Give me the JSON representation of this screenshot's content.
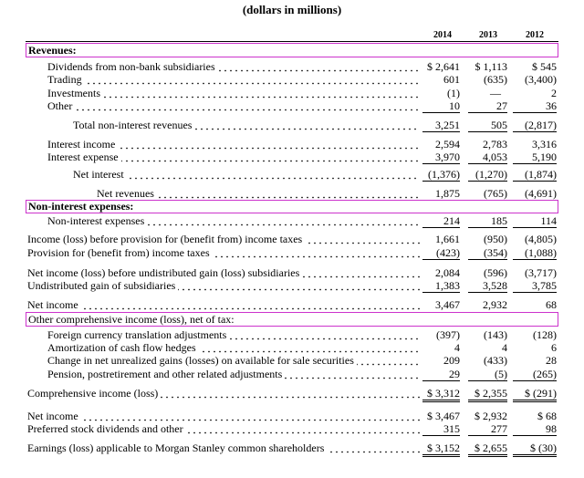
{
  "caption": "(dollars in millions)",
  "columns": [
    "2014",
    "2013",
    "2012"
  ],
  "sections": {
    "revenues": "Revenues:",
    "non_interest_expenses": "Non-interest expenses:",
    "oci": "Other comprehensive income (loss), net of tax:"
  },
  "rows": [
    {
      "label": "Dividends from non-bank subsidiaries",
      "values": [
        "$ 2,641",
        "$ 1,113",
        "$ 545"
      ]
    },
    {
      "label": "Trading",
      "values": [
        "601",
        "(635)",
        "(3,400)"
      ]
    },
    {
      "label": "Investments",
      "values": [
        "(1)",
        "—",
        "2"
      ]
    },
    {
      "label": "Other",
      "values": [
        "10",
        "27",
        "36"
      ]
    },
    {
      "label": "Total non-interest revenues",
      "values": [
        "3,251",
        "505",
        "(2,817)"
      ]
    },
    {
      "label": "Interest income",
      "values": [
        "2,594",
        "2,783",
        "3,316"
      ]
    },
    {
      "label": "Interest expense",
      "values": [
        "3,970",
        "4,053",
        "5,190"
      ]
    },
    {
      "label": "Net interest",
      "values": [
        "(1,376)",
        "(1,270)",
        "(1,874)"
      ]
    },
    {
      "label": "Net revenues",
      "values": [
        "1,875",
        "(765)",
        "(4,691)"
      ]
    },
    {
      "label": "Non-interest expenses",
      "values": [
        "214",
        "185",
        "114"
      ]
    },
    {
      "label": "Income (loss) before provision for (benefit from) income taxes",
      "values": [
        "1,661",
        "(950)",
        "(4,805)"
      ]
    },
    {
      "label": "Provision for (benefit from) income taxes",
      "values": [
        "(423)",
        "(354)",
        "(1,088)"
      ]
    },
    {
      "label": "Net income (loss) before undistributed gain (loss) subsidiaries",
      "values": [
        "2,084",
        "(596)",
        "(3,717)"
      ]
    },
    {
      "label": "Undistributed gain of subsidiaries",
      "values": [
        "1,383",
        "3,528",
        "3,785"
      ]
    },
    {
      "label": "Net income",
      "values": [
        "3,467",
        "2,932",
        "68"
      ]
    },
    {
      "label": "Foreign currency translation adjustments",
      "values": [
        "(397)",
        "(143)",
        "(128)"
      ]
    },
    {
      "label": "Amortization of cash flow hedges",
      "values": [
        "4",
        "4",
        "6"
      ]
    },
    {
      "label": "Change in net unrealized gains (losses) on available for sale securities",
      "values": [
        "209",
        "(433)",
        "28"
      ]
    },
    {
      "label": "Pension, postretirement and other related adjustments",
      "values": [
        "29",
        "(5)",
        "(265)"
      ]
    },
    {
      "label": "Comprehensive income (loss)",
      "values": [
        "$ 3,312",
        "$ 2,355",
        "$ (291)"
      ]
    },
    {
      "label": "Net income",
      "values": [
        "$ 3,467",
        "$ 2,932",
        "$ 68"
      ]
    },
    {
      "label": "Preferred stock dividends and other",
      "values": [
        "315",
        "277",
        "98"
      ]
    },
    {
      "label": "Earnings (loss) applicable to Morgan Stanley common shareholders",
      "values": [
        "$ 3,152",
        "$ 2,655",
        "$ (30)"
      ]
    }
  ]
}
